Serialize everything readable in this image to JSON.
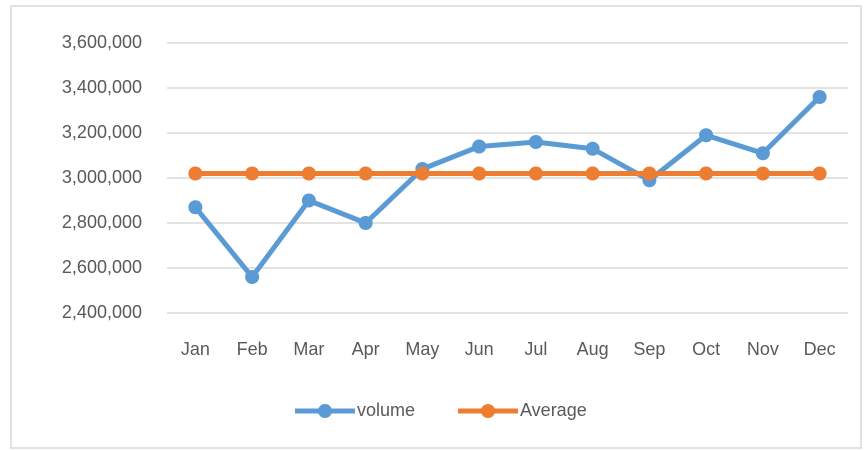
{
  "chart_data": {
    "type": "line",
    "categories": [
      "Jan",
      "Feb",
      "Mar",
      "Apr",
      "May",
      "Jun",
      "Jul",
      "Aug",
      "Sep",
      "Oct",
      "Nov",
      "Dec"
    ],
    "series": [
      {
        "name": "volume",
        "color": "#5b9bd5",
        "values": [
          2870000,
          2560000,
          2900000,
          2800000,
          3040000,
          3140000,
          3160000,
          3130000,
          2990000,
          3190000,
          3110000,
          3360000
        ]
      },
      {
        "name": "Average",
        "color": "#ed7d31",
        "values": [
          3020000,
          3020000,
          3020000,
          3020000,
          3020000,
          3020000,
          3020000,
          3020000,
          3020000,
          3020000,
          3020000,
          3020000
        ]
      }
    ],
    "ylim": [
      2400000,
      3600000
    ],
    "yticks": [
      {
        "value": 2400000,
        "label": "2,400,000"
      },
      {
        "value": 2600000,
        "label": "2,600,000"
      },
      {
        "value": 2800000,
        "label": "2,800,000"
      },
      {
        "value": 3000000,
        "label": "3,000,000"
      },
      {
        "value": 3200000,
        "label": "3,200,000"
      },
      {
        "value": 3400000,
        "label": "3,400,000"
      },
      {
        "value": 3600000,
        "label": "3,600,000"
      }
    ],
    "grid": true,
    "legend": "bottom"
  }
}
